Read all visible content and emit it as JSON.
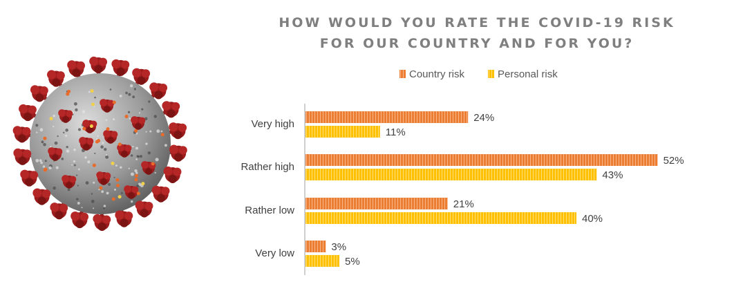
{
  "chart_data": {
    "type": "bar",
    "orientation": "horizontal",
    "title_lines": [
      "HOW WOULD YOU RATE THE COVID-19 RISK",
      "FOR OUR COUNTRY AND FOR YOU?"
    ],
    "categories": [
      "Very high",
      "Rather high",
      "Rather low",
      "Very low"
    ],
    "series": [
      {
        "name": "Country risk",
        "values": [
          24,
          52,
          21,
          3
        ],
        "labels": [
          "24%",
          "52%",
          "21%",
          "3%"
        ],
        "color": "#ed7d31"
      },
      {
        "name": "Personal risk",
        "values": [
          11,
          43,
          40,
          5
        ],
        "labels": [
          "11%",
          "43%",
          "40%",
          "5%"
        ],
        "color": "#ffc000"
      }
    ],
    "value_unit": "%",
    "xlim": [
      0,
      55
    ],
    "grid": false,
    "legend_position": "top"
  },
  "image": {
    "icon": "coronavirus-illustration"
  }
}
